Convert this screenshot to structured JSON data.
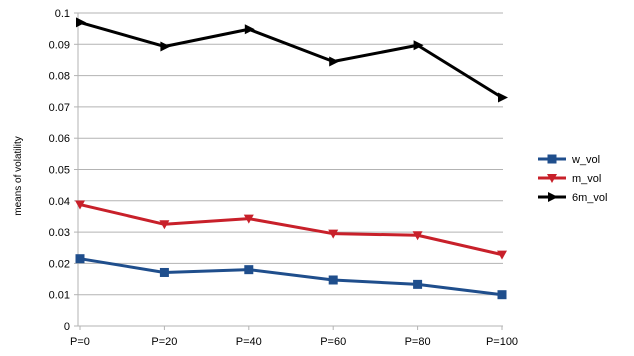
{
  "chart_data": {
    "type": "line",
    "title": "",
    "xlabel": "",
    "ylabel": "means of volatility",
    "categories": [
      "P=0",
      "P=20",
      "P=40",
      "P=60",
      "P=80",
      "P=100"
    ],
    "ylim": [
      0,
      0.1
    ],
    "yticks": [
      "0",
      "0.01",
      "0.02",
      "0.03",
      "0.04",
      "0.05",
      "0.06",
      "0.07",
      "0.08",
      "0.09",
      "0.1"
    ],
    "grid": "horizontal",
    "legend_position": "right",
    "series": [
      {
        "name": "w_vol",
        "values": [
          0.0215,
          0.0171,
          0.018,
          0.0147,
          0.0133,
          0.01
        ],
        "color": "#1f4e8c",
        "marker": "square"
      },
      {
        "name": "m_vol",
        "values": [
          0.0388,
          0.0325,
          0.0343,
          0.0295,
          0.029,
          0.0228
        ],
        "color": "#c8202a",
        "marker": "triangle-down"
      },
      {
        "name": "6m_vol",
        "values": [
          0.097,
          0.0893,
          0.0948,
          0.0845,
          0.0897,
          0.073
        ],
        "color": "#000000",
        "marker": "triangle-right"
      }
    ]
  }
}
